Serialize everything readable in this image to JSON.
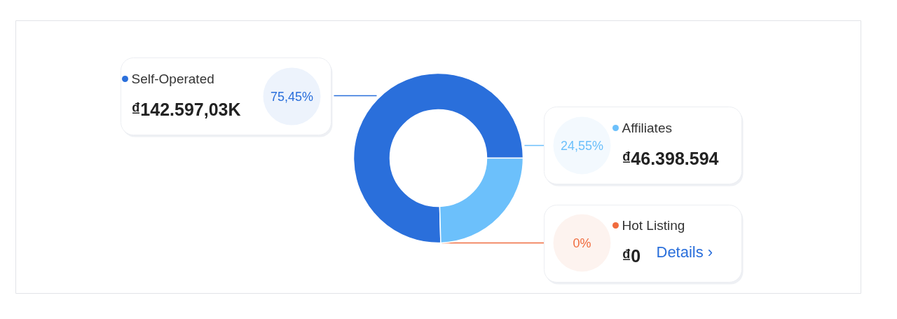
{
  "chart_data": {
    "type": "donut",
    "categories": [
      "Self-Operated",
      "Affiliates",
      "Hot Listing"
    ],
    "values": [
      75.45,
      24.55,
      0
    ],
    "colors": [
      "#2a6fdb",
      "#6cc0fb",
      "#f06b3e"
    ],
    "legend": "top left",
    "value_labels": [
      "75,45%",
      "24,55%",
      "0%"
    ],
    "annotations": [
      "₫142.597,03K",
      "₫46.398.594",
      "₫0",
      "Details ›"
    ]
  }
}
